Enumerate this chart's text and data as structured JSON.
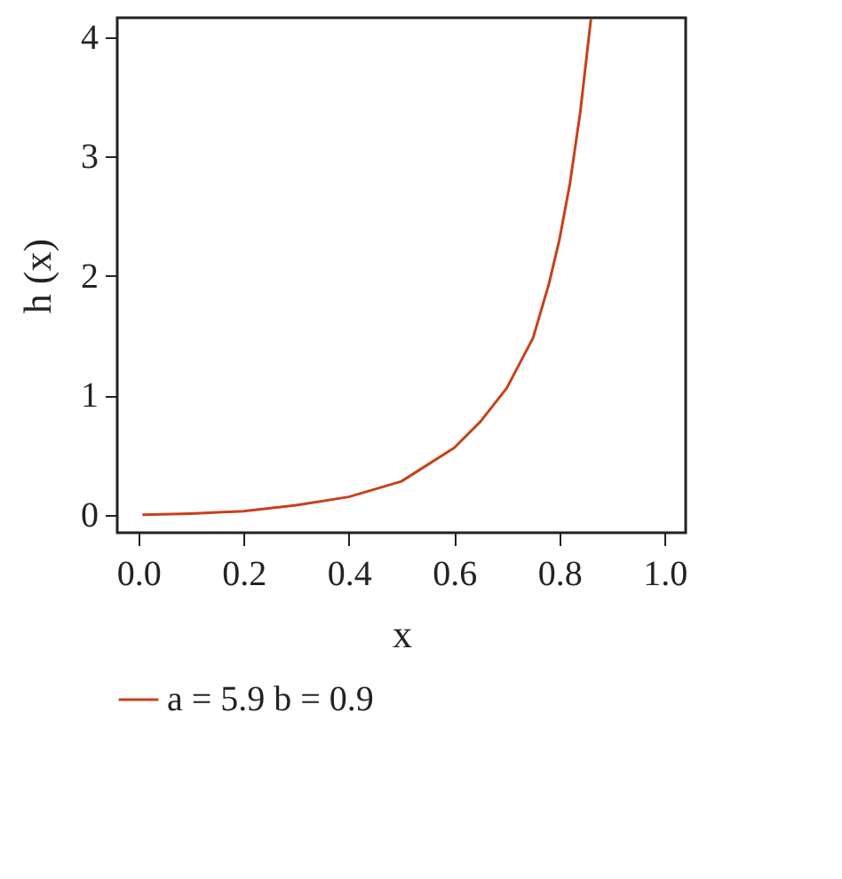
{
  "chart_data": {
    "type": "line",
    "xlabel": "x",
    "ylabel": "h (x)",
    "xlim": [
      -0.04,
      1.04
    ],
    "ylim": [
      -0.15,
      4.16
    ],
    "xticks": [
      {
        "value": 0,
        "label": "0.0"
      },
      0.2,
      0.4,
      0.6,
      0.8,
      {
        "value": 1,
        "label": "1.0"
      }
    ],
    "yticks": [
      0,
      1,
      2,
      3,
      4
    ],
    "x": [
      0.008,
      0.1,
      0.2,
      0.3,
      0.4,
      0.5,
      0.6,
      0.65,
      0.7,
      0.75,
      0.78,
      0.8,
      0.82,
      0.84,
      0.86
    ],
    "series": [
      {
        "name": "a = 5.9 b = 0.9",
        "color": "#c8401a",
        "values": [
          0,
          0.01,
          0.03,
          0.08,
          0.15,
          0.28,
          0.56,
          0.78,
          1.06,
          1.48,
          1.93,
          2.3,
          2.77,
          3.38,
          4.15
        ]
      }
    ],
    "legend": "bottom",
    "grid": false,
    "marker": "none",
    "line_style": "solid"
  }
}
